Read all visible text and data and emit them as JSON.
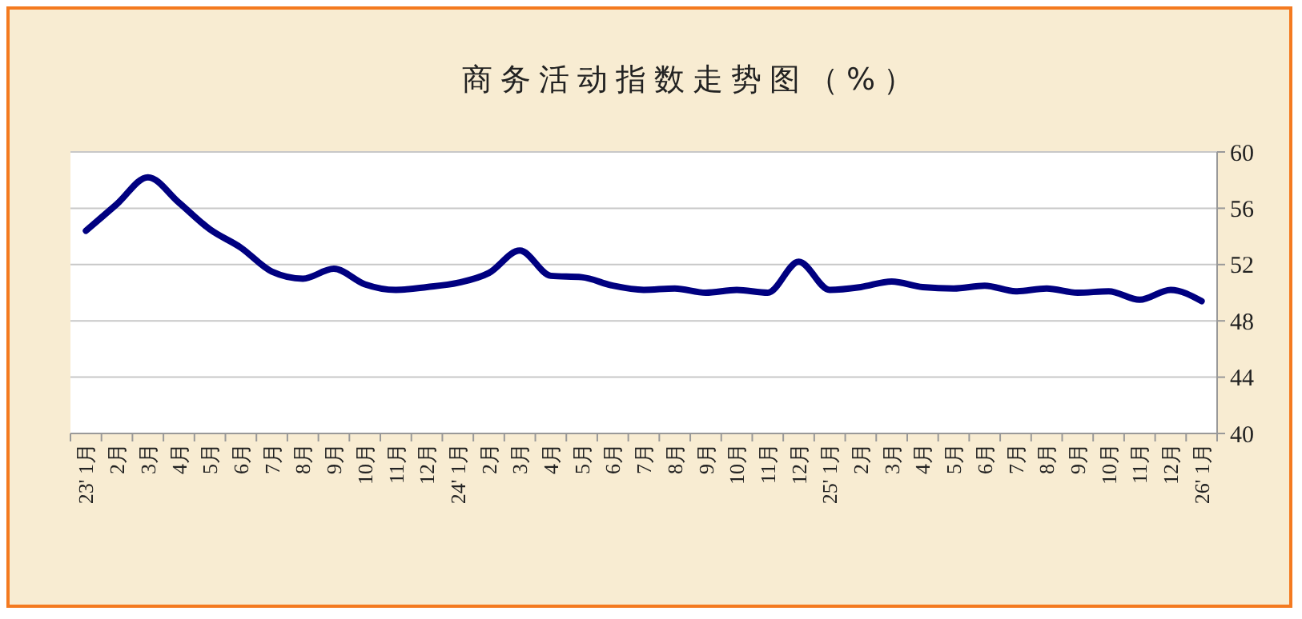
{
  "chart_data": {
    "type": "line",
    "title": "商务活动指数走势图（%）",
    "categories": [
      "23' 1月",
      "2月",
      "3月",
      "4月",
      "5月",
      "6月",
      "7月",
      "8月",
      "9月",
      "10月",
      "11月",
      "12月",
      "24' 1月",
      "2月",
      "3月",
      "4月",
      "5月",
      "6月",
      "7月",
      "8月",
      "9月",
      "10月",
      "11月",
      "12月",
      "25' 1月",
      "2月",
      "3月",
      "4月",
      "5月",
      "6月",
      "7月",
      "8月",
      "9月",
      "10月",
      "11月",
      "12月",
      "26' 1月"
    ],
    "series": [
      {
        "color": "#000080",
        "values": [
          54.4,
          56.3,
          58.2,
          56.4,
          54.5,
          53.2,
          51.5,
          51.0,
          51.7,
          50.6,
          50.2,
          50.4,
          50.7,
          51.4,
          53.0,
          51.2,
          51.1,
          50.5,
          50.2,
          50.3,
          50.0,
          50.2,
          50.0,
          52.2,
          50.2,
          50.4,
          50.8,
          50.4,
          50.3,
          50.5,
          50.1,
          50.3,
          50.0,
          50.1,
          49.5,
          50.2,
          49.4
        ]
      }
    ],
    "ylim": [
      40,
      60
    ],
    "yticks": [
      40,
      44,
      48,
      52,
      56,
      60
    ],
    "grid": "y",
    "marker": "none",
    "line_style": "solid"
  }
}
